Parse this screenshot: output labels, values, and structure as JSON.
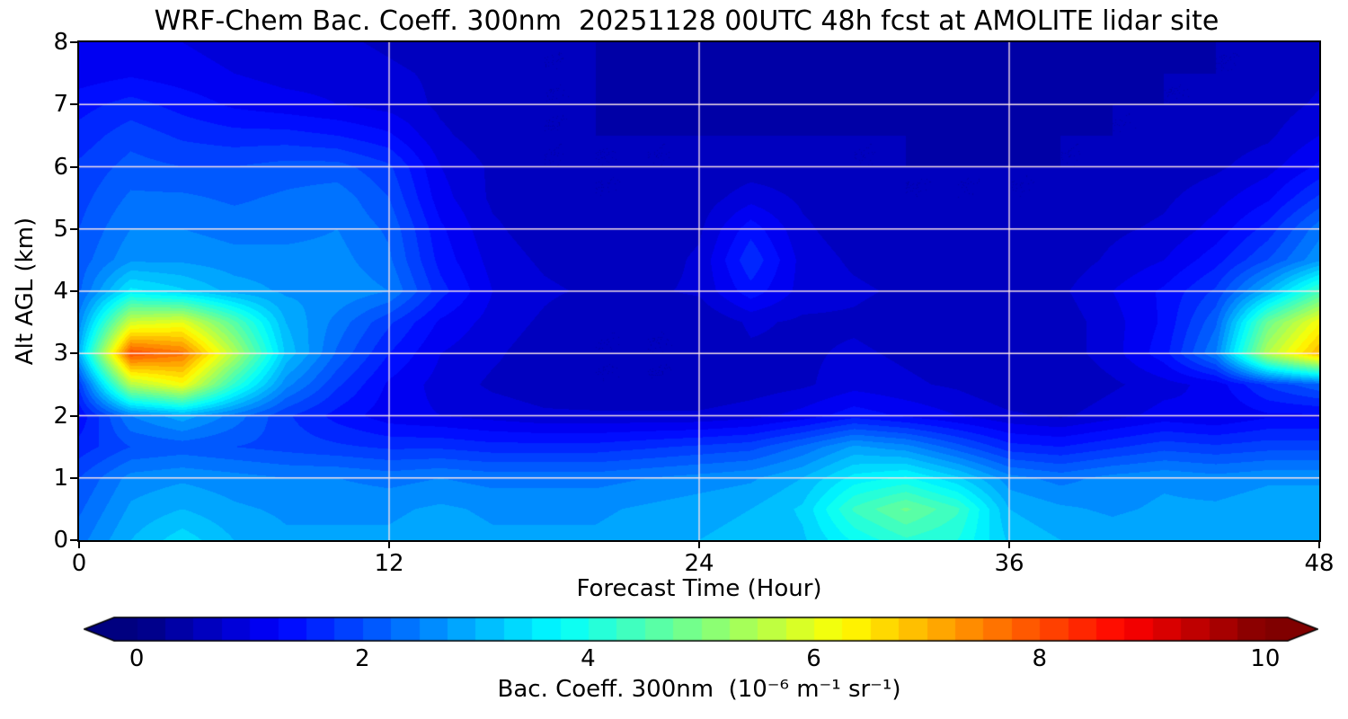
{
  "figure": {
    "background": "#ffffff"
  },
  "chart_data": {
    "type": "heatmap",
    "title": "WRF-Chem Bac. Coeff. 300nm  20251128 00UTC 48h fcst at AMOLITE lidar site",
    "xlabel": "Forecast Time (Hour)",
    "ylabel": "Alt AGL (km)",
    "xlim": [
      0,
      48
    ],
    "ylim": [
      0,
      8
    ],
    "x": [
      0,
      2,
      4,
      6,
      8,
      10,
      12,
      14,
      16,
      18,
      20,
      22,
      24,
      26,
      28,
      30,
      32,
      34,
      36,
      38,
      40,
      42,
      44,
      46,
      48
    ],
    "y": [
      0,
      0.5,
      1,
      1.5,
      2,
      2.5,
      3,
      3.5,
      4,
      4.5,
      5,
      5.5,
      6,
      6.5,
      7,
      7.5,
      8
    ],
    "values": [
      [
        2.4,
        3.0,
        3.4,
        3.0,
        2.8,
        2.8,
        2.8,
        2.9,
        2.8,
        2.8,
        2.8,
        2.9,
        3.0,
        3.1,
        3.2,
        3.8,
        4.2,
        4.0,
        3.2,
        3.0,
        2.9,
        3.0,
        2.9,
        3.0,
        3.0
      ],
      [
        2.2,
        2.8,
        3.0,
        2.8,
        2.7,
        2.7,
        2.7,
        2.8,
        2.7,
        2.7,
        2.7,
        2.8,
        2.9,
        3.0,
        3.3,
        4.3,
        4.8,
        4.3,
        3.0,
        2.8,
        2.7,
        2.8,
        2.8,
        2.9,
        2.9
      ],
      [
        2.0,
        2.6,
        2.7,
        2.6,
        2.5,
        2.5,
        2.4,
        2.5,
        2.4,
        2.4,
        2.4,
        2.5,
        2.6,
        2.7,
        3.0,
        3.6,
        3.8,
        3.3,
        2.6,
        2.4,
        2.6,
        2.7,
        2.6,
        2.7,
        2.7
      ],
      [
        1.6,
        2.0,
        2.1,
        2.0,
        1.9,
        1.8,
        1.7,
        1.7,
        1.6,
        1.6,
        1.6,
        1.7,
        1.8,
        1.9,
        2.3,
        2.8,
        2.6,
        2.1,
        1.6,
        1.5,
        1.7,
        1.9,
        1.8,
        1.9,
        1.9
      ],
      [
        1.3,
        2.5,
        2.9,
        2.4,
        1.8,
        1.4,
        1.1,
        1.0,
        0.9,
        0.8,
        0.8,
        0.8,
        0.8,
        0.9,
        1.1,
        1.4,
        1.2,
        1.0,
        0.8,
        0.7,
        0.9,
        1.1,
        1.0,
        1.2,
        1.2
      ],
      [
        1.8,
        5.5,
        6.2,
        4.2,
        2.6,
        1.8,
        1.2,
        0.9,
        0.7,
        0.6,
        0.5,
        0.5,
        0.5,
        0.6,
        0.7,
        0.9,
        0.8,
        0.7,
        0.5,
        0.5,
        0.7,
        0.9,
        1.1,
        1.8,
        2.2
      ],
      [
        3.0,
        8.0,
        7.6,
        5.5,
        3.2,
        2.2,
        1.5,
        1.0,
        0.8,
        0.6,
        0.5,
        0.5,
        0.5,
        0.7,
        0.7,
        0.8,
        0.7,
        0.6,
        0.5,
        0.6,
        0.9,
        1.4,
        2.5,
        5.5,
        7.0
      ],
      [
        2.6,
        5.8,
        6.0,
        4.6,
        3.0,
        2.4,
        1.8,
        1.2,
        0.9,
        0.7,
        0.5,
        0.5,
        0.5,
        0.8,
        0.7,
        0.7,
        0.6,
        0.6,
        0.5,
        0.6,
        0.9,
        1.3,
        2.2,
        4.8,
        6.2
      ],
      [
        2.2,
        3.6,
        3.3,
        2.9,
        2.7,
        2.7,
        2.5,
        1.6,
        1.0,
        0.8,
        0.7,
        0.7,
        0.8,
        1.4,
        0.9,
        0.8,
        0.7,
        0.7,
        0.6,
        0.7,
        1.0,
        1.3,
        1.8,
        3.0,
        4.4
      ],
      [
        2.1,
        2.7,
        2.7,
        2.6,
        2.6,
        2.6,
        2.3,
        1.4,
        0.9,
        0.7,
        0.6,
        0.6,
        0.8,
        1.7,
        0.9,
        0.7,
        0.6,
        0.6,
        0.6,
        0.6,
        0.8,
        1.0,
        1.4,
        2.0,
        2.7
      ],
      [
        2.0,
        2.5,
        2.5,
        2.4,
        2.4,
        2.5,
        2.2,
        1.3,
        0.8,
        0.6,
        0.6,
        0.6,
        0.7,
        1.4,
        0.8,
        0.6,
        0.6,
        0.6,
        0.5,
        0.6,
        0.7,
        0.8,
        1.1,
        1.6,
        2.4
      ],
      [
        1.9,
        2.3,
        2.3,
        2.2,
        2.3,
        2.4,
        2.0,
        1.1,
        0.7,
        0.6,
        0.5,
        0.5,
        0.6,
        0.9,
        0.7,
        0.6,
        0.5,
        0.5,
        0.5,
        0.5,
        0.6,
        0.7,
        0.9,
        1.2,
        1.8
      ],
      [
        1.8,
        2.1,
        2.0,
        2.0,
        2.1,
        2.1,
        1.8,
        1.0,
        0.7,
        0.5,
        0.5,
        0.5,
        0.5,
        0.6,
        0.6,
        0.5,
        0.5,
        0.5,
        0.5,
        0.5,
        0.5,
        0.6,
        0.7,
        0.9,
        1.3
      ],
      [
        1.6,
        1.9,
        1.7,
        1.6,
        1.6,
        1.5,
        1.3,
        0.8,
        0.6,
        0.5,
        0.5,
        0.5,
        0.5,
        0.5,
        0.5,
        0.5,
        0.5,
        0.4,
        0.4,
        0.5,
        0.5,
        0.5,
        0.6,
        0.7,
        1.0
      ],
      [
        1.4,
        1.6,
        1.4,
        1.2,
        1.1,
        1.0,
        0.9,
        0.7,
        0.6,
        0.5,
        0.5,
        0.4,
        0.4,
        0.4,
        0.4,
        0.4,
        0.4,
        0.4,
        0.4,
        0.4,
        0.5,
        0.5,
        0.5,
        0.6,
        0.8
      ],
      [
        1.1,
        1.2,
        1.1,
        1.0,
        0.9,
        0.9,
        0.8,
        0.7,
        0.6,
        0.5,
        0.5,
        0.4,
        0.4,
        0.4,
        0.4,
        0.4,
        0.4,
        0.4,
        0.4,
        0.4,
        0.4,
        0.5,
        0.5,
        0.5,
        0.7
      ],
      [
        1.0,
        1.1,
        1.0,
        0.9,
        0.8,
        0.8,
        0.7,
        0.6,
        0.6,
        0.5,
        0.5,
        0.5,
        0.4,
        0.4,
        0.4,
        0.4,
        0.4,
        0.4,
        0.4,
        0.4,
        0.4,
        0.4,
        0.5,
        0.5,
        0.6
      ]
    ],
    "x_ticks": {
      "values": [
        0,
        12,
        24,
        36,
        48
      ],
      "labels": [
        "0",
        "12",
        "24",
        "36",
        "48"
      ]
    },
    "y_ticks": {
      "values": [
        0,
        1,
        2,
        3,
        4,
        5,
        6,
        7,
        8
      ],
      "labels": [
        "0",
        "1",
        "2",
        "3",
        "4",
        "5",
        "6",
        "7",
        "8"
      ]
    },
    "grid": {
      "on": true,
      "color": "rgba(255,232,232,0.95)",
      "x_lines": [
        12,
        24,
        36
      ],
      "y_lines": [
        1,
        2,
        3,
        4,
        5,
        6,
        7
      ]
    },
    "colormap": "jet",
    "levels_step": 0.25,
    "colorbar": {
      "label": "Bac. Coeff. 300nm  (10⁻⁶ m⁻¹ sr⁻¹)",
      "ticks": {
        "values": [
          0,
          2,
          4,
          6,
          8,
          10
        ],
        "labels": [
          "0",
          "2",
          "4",
          "6",
          "8",
          "10"
        ]
      },
      "vmin": 0,
      "vmax": 10,
      "extend": "both",
      "under_color": "#000080",
      "over_color": "#800000"
    }
  }
}
